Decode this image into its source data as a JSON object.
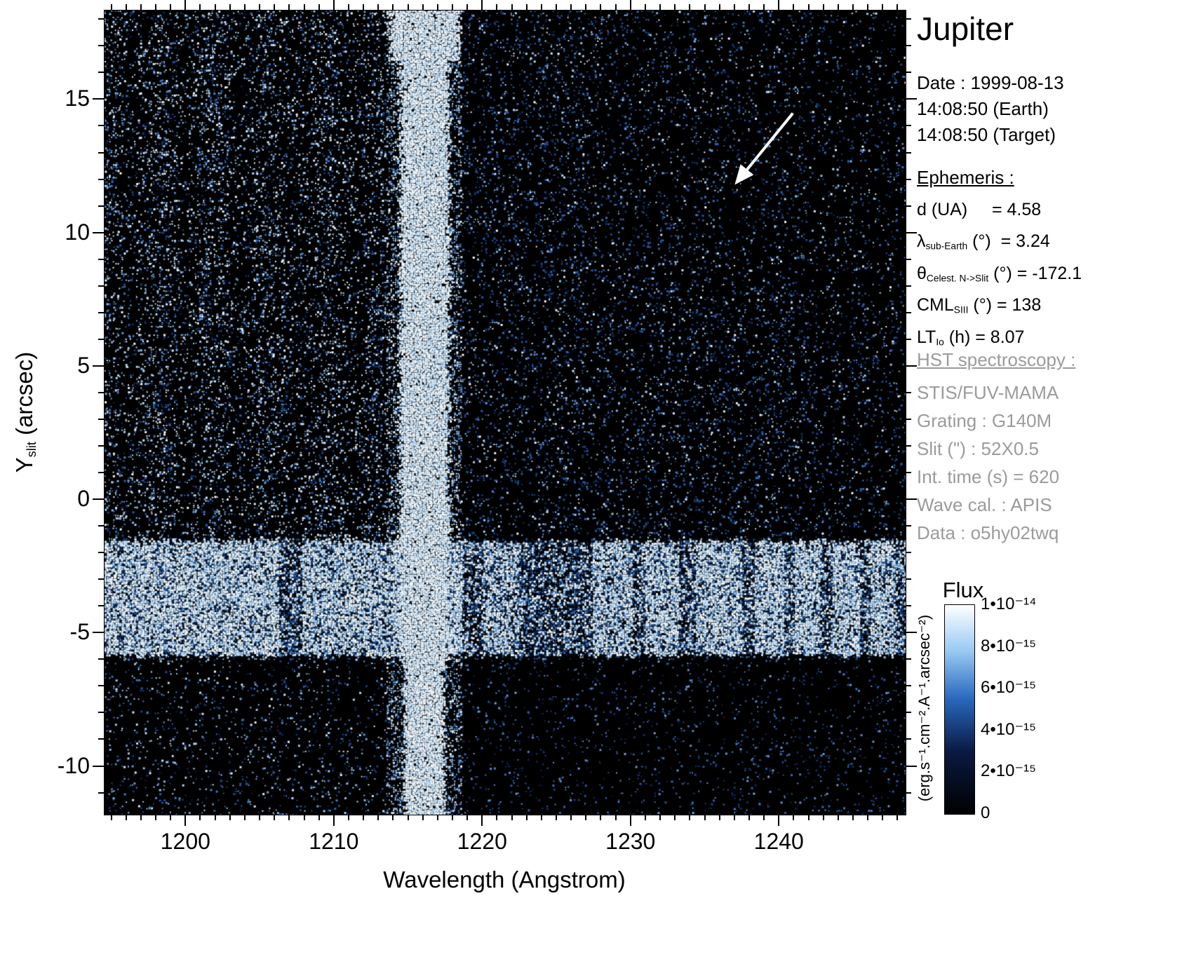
{
  "title": "Jupiter",
  "observation": {
    "date": "Date : 1999-08-13",
    "time_earth": "14:08:50 (Earth)",
    "time_target": "14:08:50 (Target)"
  },
  "ephemeris": {
    "heading": "Ephemeris :",
    "rows": [
      {
        "pre": "d (UA)",
        "sub": "",
        "post": "     = 4.58"
      },
      {
        "pre": "λ",
        "sub": "sub-Earth",
        "post": " (°)  = 3.24"
      },
      {
        "pre": "θ",
        "sub": "Celest. N->Slit",
        "post": " (°) = -172.1"
      },
      {
        "pre": "CML",
        "sub": "SIII",
        "post": " (°) = 138"
      },
      {
        "pre": "LT",
        "sub": "Io",
        "post": " (h) = 8.07"
      }
    ]
  },
  "hst": {
    "heading": "HST spectroscopy :",
    "lines": [
      "STIS/FUV-MAMA",
      "Grating : G140M",
      "Slit (\") : 52X0.5",
      "Int. time (s) = 620",
      "Wave cal. : APIS",
      "Data : o5hy02twq"
    ]
  },
  "colorbar": {
    "title": "Flux",
    "unit": "(erg.s⁻¹.cm⁻².A⁻¹.arcsec⁻²)",
    "tick_labels": [
      "1•10⁻¹⁴",
      "8•10⁻¹⁵",
      "6•10⁻¹⁵",
      "4•10⁻¹⁵",
      "2•10⁻¹⁵",
      "0"
    ]
  },
  "axes": {
    "xlabel": "Wavelength (Angstrom)",
    "ylabel_pre": "Y",
    "ylabel_sub": "slit",
    "ylabel_post": " (arcsec)"
  },
  "chart_data": {
    "type": "heatmap",
    "title": "Jupiter",
    "xlabel": "Wavelength (Angstrom)",
    "ylabel": "Y slit (arcsec)",
    "xlim": [
      1194.5,
      1248.5
    ],
    "ylim": [
      -11.8,
      18.35
    ],
    "x_major_ticks": [
      1200,
      1210,
      1220,
      1230,
      1240
    ],
    "y_major_ticks": [
      15,
      10,
      5,
      0,
      -5,
      -10
    ],
    "x_minor_step": 1,
    "y_minor_step": 1,
    "grid": false,
    "colorbar": {
      "min": 0,
      "max": 1e-14,
      "unit": "erg.s-1.cm-2.A-1.arcsec-2",
      "tick_values": [
        1e-14,
        8e-15,
        6e-15,
        4e-15,
        2e-15,
        0
      ]
    },
    "features": [
      {
        "name": "geocoronal-lyman-alpha-emission",
        "x_center": 1216.0,
        "x_half_width": 1.4,
        "y_range": [
          -11.8,
          18.35
        ]
      },
      {
        "name": "jupiter-disk-reflected-spectrum",
        "x_range": [
          1194.5,
          1248.5
        ],
        "y_range": [
          -5.9,
          -1.4
        ]
      },
      {
        "name": "annotation-arrow",
        "from": {
          "x": 1240.9,
          "y": 14.5
        },
        "to": {
          "x": 1237.1,
          "y": 11.9
        }
      }
    ],
    "speckle": {
      "left_region_max_wavelength": 1213.5,
      "left_region_density": 0.27,
      "right_region_density": 0.17,
      "far_right_density": 0.13,
      "lower_left_density": 0.12,
      "lower_right_density": 0.08,
      "halo_density": 0.45,
      "band_bottom_cutoff": -6.0
    },
    "disk_band_profile": [
      [
        1194.5,
        1206.2,
        0.95
      ],
      [
        1206.2,
        1207.8,
        0.5
      ],
      [
        1207.8,
        1213.8,
        0.9
      ],
      [
        1213.8,
        1218.6,
        1.0
      ],
      [
        1218.6,
        1220.0,
        0.55
      ],
      [
        1220.0,
        1222.4,
        0.85
      ],
      [
        1222.4,
        1224.0,
        0.45
      ],
      [
        1224.0,
        1227.4,
        0.5
      ],
      [
        1227.4,
        1230.0,
        0.9
      ],
      [
        1230.0,
        1230.9,
        0.55
      ],
      [
        1230.9,
        1233.2,
        0.9
      ],
      [
        1233.2,
        1234.3,
        0.5
      ],
      [
        1234.3,
        1237.4,
        0.92
      ],
      [
        1237.4,
        1238.3,
        0.55
      ],
      [
        1238.3,
        1240.3,
        0.95
      ],
      [
        1240.3,
        1241.0,
        0.6
      ],
      [
        1241.0,
        1242.6,
        0.95
      ],
      [
        1242.6,
        1243.5,
        0.5
      ],
      [
        1243.5,
        1245.4,
        0.92
      ],
      [
        1245.4,
        1246.0,
        0.6
      ],
      [
        1246.0,
        1247.7,
        0.92
      ],
      [
        1247.7,
        1248.5,
        0.6
      ]
    ]
  }
}
